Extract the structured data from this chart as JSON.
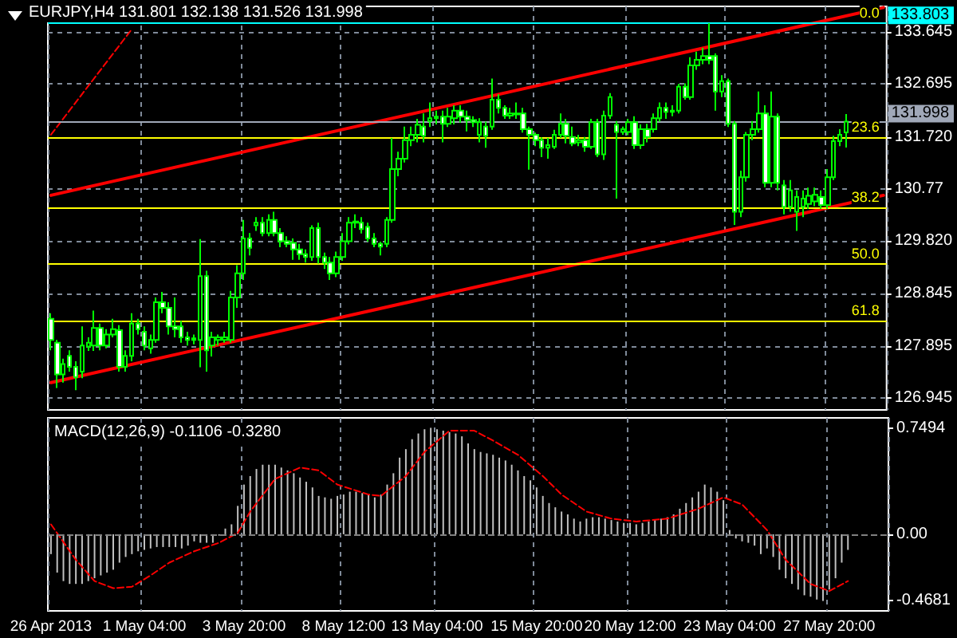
{
  "chart_data": [
    {
      "type": "candlestick",
      "title": "EURJPY,H4 131.801 132.138 131.526 131.998",
      "categories": [
        null,
        null,
        null,
        null,
        null,
        null,
        null,
        null,
        null,
        null,
        null,
        null,
        null,
        null,
        null,
        null,
        null,
        null,
        null,
        null,
        null,
        null,
        null,
        null,
        null,
        null,
        null,
        null,
        null,
        null,
        null,
        null,
        null,
        null,
        null,
        null,
        null,
        null,
        null,
        null,
        null,
        null,
        null,
        null,
        null,
        null,
        null,
        null,
        null,
        null,
        null,
        null,
        null,
        null,
        null,
        null,
        null,
        null,
        null,
        null,
        null,
        null,
        null,
        null,
        null,
        null,
        null,
        null,
        null,
        null,
        null,
        null,
        null,
        null,
        null,
        null,
        null,
        null,
        null,
        null,
        null,
        null,
        null,
        null,
        null,
        null,
        null,
        null,
        null,
        null,
        null,
        null,
        null,
        null,
        null,
        null,
        null,
        null,
        null,
        null,
        null,
        null,
        null,
        null,
        null,
        null,
        null,
        null,
        null,
        null,
        null,
        null,
        null,
        null,
        null,
        null,
        null,
        null,
        null,
        null,
        null,
        null,
        null,
        null,
        null,
        null,
        null,
        null,
        null,
        null,
        null,
        null,
        null,
        null,
        null
      ],
      "series": [
        {
          "color": "#00ff00",
          "ohlc": [
            [
              128.39,
              128.49,
              127.81,
              128.0
            ],
            [
              127.95,
              128.0,
              127.12,
              127.37
            ],
            [
              127.37,
              127.66,
              127.22,
              127.56
            ],
            [
              127.71,
              127.81,
              127.42,
              127.51
            ],
            [
              127.51,
              127.61,
              127.08,
              127.32
            ],
            [
              127.42,
              128.25,
              127.3,
              127.9
            ],
            [
              127.88,
              128.05,
              127.8,
              127.95
            ],
            [
              127.9,
              128.54,
              127.8,
              128.22
            ],
            [
              128.22,
              128.3,
              127.81,
              127.9
            ],
            [
              127.9,
              128.2,
              127.85,
              128.1
            ],
            [
              128.1,
              128.39,
              128.05,
              128.2
            ],
            [
              128.18,
              128.27,
              127.42,
              127.51
            ],
            [
              127.51,
              127.81,
              127.42,
              127.71
            ],
            [
              127.71,
              128.49,
              127.61,
              128.3
            ],
            [
              128.3,
              128.39,
              128.1,
              128.2
            ],
            [
              128.15,
              128.25,
              127.81,
              127.9
            ],
            [
              127.85,
              128.1,
              127.75,
              128.0
            ],
            [
              128.0,
              128.78,
              127.95,
              128.69
            ],
            [
              128.69,
              128.88,
              128.49,
              128.59
            ],
            [
              128.59,
              128.69,
              128.1,
              128.25
            ],
            [
              128.25,
              128.78,
              128.05,
              128.2
            ],
            [
              128.25,
              128.35,
              127.95,
              128.05
            ],
            [
              128.05,
              128.15,
              127.9,
              128.0
            ],
            [
              128.03,
              128.1,
              127.92,
              128.0
            ],
            [
              128.0,
              129.85,
              127.5,
              129.17
            ],
            [
              129.17,
              129.27,
              127.42,
              127.81
            ],
            [
              127.9,
              128.15,
              127.7,
              128.05
            ],
            [
              128.0,
              128.1,
              127.9,
              128.05
            ],
            [
              128.0,
              128.15,
              127.95,
              128.05
            ],
            [
              128.0,
              128.9,
              127.95,
              128.78
            ],
            [
              128.78,
              129.37,
              128.59,
              129.22
            ],
            [
              129.22,
              130.2,
              129.1,
              129.86
            ],
            [
              129.86,
              129.96,
              129.55,
              129.69
            ],
            [
              130.1,
              130.25,
              130.0,
              130.15
            ],
            [
              130.15,
              130.25,
              129.9,
              129.96
            ],
            [
              129.96,
              130.3,
              129.9,
              130.2
            ],
            [
              130.2,
              130.35,
              129.9,
              129.96
            ],
            [
              129.96,
              130.05,
              129.7,
              129.81
            ],
            [
              129.81,
              129.9,
              129.7,
              129.76
            ],
            [
              129.78,
              129.86,
              129.47,
              129.66
            ],
            [
              129.66,
              129.76,
              129.47,
              129.57
            ],
            [
              129.57,
              129.66,
              129.42,
              129.52
            ],
            [
              129.52,
              130.1,
              129.45,
              130.05
            ],
            [
              130.05,
              130.15,
              129.4,
              129.52
            ],
            [
              129.52,
              129.6,
              129.3,
              129.42
            ],
            [
              129.42,
              129.52,
              129.1,
              129.22
            ],
            [
              129.22,
              129.62,
              129.15,
              129.52
            ],
            [
              129.52,
              129.96,
              129.45,
              129.81
            ],
            [
              129.81,
              130.25,
              129.75,
              130.15
            ],
            [
              130.15,
              130.3,
              130.05,
              130.17
            ],
            [
              130.15,
              130.25,
              129.95,
              130.03
            ],
            [
              130.07,
              130.15,
              129.8,
              129.86
            ],
            [
              129.86,
              129.96,
              129.7,
              129.76
            ],
            [
              129.76,
              129.8,
              129.55,
              129.71
            ],
            [
              129.76,
              130.25,
              129.7,
              130.2
            ],
            [
              130.2,
              131.7,
              130.15,
              131.13
            ],
            [
              131.13,
              131.45,
              131.0,
              131.32
            ],
            [
              131.32,
              131.91,
              131.25,
              131.66
            ],
            [
              131.66,
              131.91,
              131.55,
              131.76
            ],
            [
              131.76,
              132.05,
              131.62,
              131.94
            ],
            [
              131.91,
              132.15,
              131.62,
              131.74
            ],
            [
              132.01,
              132.35,
              131.9,
              132.06
            ],
            [
              132.06,
              132.2,
              131.95,
              132.09
            ],
            [
              132.09,
              132.2,
              131.62,
              131.96
            ],
            [
              131.96,
              132.25,
              131.9,
              132.09
            ],
            [
              132.06,
              132.3,
              131.95,
              132.2
            ],
            [
              132.2,
              132.3,
              131.98,
              132.09
            ],
            [
              132.09,
              132.2,
              131.82,
              132.03
            ],
            [
              132.03,
              132.1,
              131.9,
              131.99
            ],
            [
              131.76,
              132.06,
              131.62,
              131.99
            ],
            [
              131.91,
              132.0,
              131.52,
              131.74
            ],
            [
              131.91,
              132.79,
              131.85,
              132.4
            ],
            [
              132.4,
              132.5,
              132.15,
              132.25
            ],
            [
              132.25,
              132.3,
              132.05,
              132.11
            ],
            [
              132.11,
              132.25,
              132.05,
              132.15
            ],
            [
              132.15,
              132.35,
              132.05,
              132.13
            ],
            [
              132.15,
              132.25,
              131.8,
              131.86
            ],
            [
              131.86,
              131.91,
              131.12,
              131.76
            ],
            [
              131.76,
              131.8,
              131.55,
              131.66
            ],
            [
              131.66,
              131.71,
              131.35,
              131.52
            ],
            [
              131.52,
              131.7,
              131.32,
              131.57
            ],
            [
              131.54,
              131.85,
              131.5,
              131.76
            ],
            [
              131.76,
              132.15,
              131.7,
              131.96
            ],
            [
              131.96,
              132.05,
              131.6,
              131.74
            ],
            [
              131.72,
              131.91,
              131.55,
              131.6
            ],
            [
              131.62,
              131.76,
              131.55,
              131.66
            ],
            [
              131.66,
              131.72,
              131.45,
              131.54
            ],
            [
              131.54,
              132.05,
              131.5,
              131.99
            ],
            [
              131.99,
              132.05,
              131.35,
              131.4
            ],
            [
              131.4,
              132.2,
              131.3,
              132.11
            ],
            [
              132.11,
              132.52,
              132.05,
              132.45
            ],
            [
              131.94,
              132.01,
              130.59,
              131.81
            ],
            [
              131.81,
              131.91,
              131.76,
              131.86
            ],
            [
              131.81,
              132.05,
              131.75,
              131.99
            ],
            [
              131.99,
              132.1,
              131.5,
              131.57
            ],
            [
              131.57,
              131.95,
              131.5,
              131.86
            ],
            [
              131.86,
              131.96,
              131.62,
              131.72
            ],
            [
              131.86,
              132.15,
              131.8,
              132.06
            ],
            [
              132.06,
              132.35,
              132.0,
              132.25
            ],
            [
              132.25,
              132.35,
              132.05,
              132.18
            ],
            [
              132.18,
              132.3,
              132.1,
              132.2
            ],
            [
              132.2,
              132.69,
              132.15,
              132.64
            ],
            [
              132.64,
              132.7,
              132.4,
              132.45
            ],
            [
              132.45,
              133.18,
              132.4,
              133.03
            ],
            [
              133.03,
              133.28,
              132.95,
              133.13
            ],
            [
              133.13,
              133.35,
              133.05,
              133.2
            ],
            [
              133.2,
              133.803,
              133.05,
              133.13
            ],
            [
              133.2,
              133.25,
              132.2,
              132.55
            ],
            [
              132.55,
              132.85,
              132.45,
              132.74
            ],
            [
              132.74,
              132.79,
              131.9,
              131.96
            ],
            [
              131.96,
              132.01,
              130.11,
              130.35
            ],
            [
              130.35,
              131.1,
              130.25,
              130.98
            ],
            [
              130.98,
              131.81,
              130.9,
              131.76
            ],
            [
              131.76,
              132.01,
              131.66,
              131.86
            ],
            [
              131.86,
              132.55,
              131.8,
              132.15
            ],
            [
              132.15,
              132.3,
              130.8,
              130.88
            ],
            [
              130.88,
              132.55,
              130.8,
              132.09
            ],
            [
              132.09,
              132.15,
              130.74,
              130.88
            ],
            [
              130.83,
              130.93,
              130.3,
              130.44
            ],
            [
              130.44,
              130.93,
              130.35,
              130.74
            ],
            [
              130.35,
              130.74,
              130.0,
              130.62
            ],
            [
              130.44,
              130.74,
              130.25,
              130.59
            ],
            [
              130.49,
              130.79,
              130.4,
              130.64
            ],
            [
              130.54,
              130.79,
              130.45,
              130.66
            ],
            [
              130.62,
              130.74,
              130.4,
              130.47
            ],
            [
              130.47,
              131.13,
              130.4,
              130.98
            ],
            [
              130.98,
              131.74,
              130.93,
              131.64
            ],
            [
              131.64,
              131.86,
              131.55,
              131.76
            ],
            [
              131.801,
              132.138,
              131.526,
              131.998
            ],
            null,
            null,
            null,
            null,
            null,
            null
          ]
        },
        {
          "type": "line",
          "color": "#ff0000",
          "values": [
            130.65,
            null,
            null,
            null,
            null,
            null,
            null,
            null,
            null,
            null,
            null,
            null,
            null,
            null,
            null,
            null,
            null,
            null,
            null,
            null,
            null,
            null,
            null,
            null,
            null,
            null,
            null,
            null,
            null,
            null,
            null,
            null,
            null,
            null,
            null,
            null,
            null,
            null,
            null,
            null,
            null,
            null,
            null,
            null,
            null,
            null,
            null,
            null,
            null,
            null,
            null,
            null,
            null,
            null,
            null,
            null,
            null,
            null,
            null,
            null,
            null,
            null,
            null,
            null,
            null,
            null,
            null,
            null,
            null,
            null,
            null,
            null,
            null,
            null,
            null,
            null,
            null,
            null,
            null,
            null,
            null,
            null,
            null,
            null,
            null,
            null,
            null,
            null,
            null,
            null,
            null,
            null,
            null,
            null,
            null,
            null,
            null,
            null,
            null,
            null,
            null,
            null,
            null,
            null,
            null,
            null,
            null,
            null,
            null,
            null,
            null,
            null,
            null,
            null,
            null,
            null,
            null,
            null,
            null,
            null,
            null,
            null,
            null,
            null,
            null,
            null,
            null,
            null,
            null,
            null,
            null,
            null,
            null,
            null,
            134.09
          ]
        },
        {
          "type": "line",
          "color": "#ff0000",
          "values": [
            127.22,
            null,
            null,
            null,
            null,
            null,
            null,
            null,
            null,
            null,
            null,
            null,
            null,
            null,
            null,
            null,
            null,
            null,
            null,
            null,
            null,
            null,
            null,
            null,
            null,
            null,
            null,
            null,
            null,
            null,
            null,
            null,
            null,
            null,
            null,
            null,
            null,
            null,
            null,
            null,
            null,
            null,
            null,
            null,
            null,
            null,
            null,
            null,
            null,
            null,
            null,
            null,
            null,
            null,
            null,
            null,
            null,
            null,
            null,
            null,
            null,
            null,
            null,
            null,
            null,
            null,
            null,
            null,
            null,
            null,
            null,
            null,
            null,
            null,
            null,
            null,
            null,
            null,
            null,
            null,
            null,
            null,
            null,
            null,
            null,
            null,
            null,
            null,
            null,
            null,
            null,
            null,
            null,
            null,
            null,
            null,
            null,
            null,
            null,
            null,
            null,
            null,
            null,
            null,
            null,
            null,
            null,
            null,
            null,
            null,
            null,
            null,
            null,
            null,
            null,
            null,
            null,
            null,
            null,
            null,
            null,
            null,
            null,
            null,
            null,
            null,
            null,
            null,
            null,
            null,
            null,
            null,
            null,
            null,
            130.65
          ]
        },
        {
          "type": "line",
          "color": "#ff0000",
          "line_style": "dashed",
          "values": [
            131.76,
            null,
            null,
            null,
            null,
            null,
            null,
            null,
            null,
            null,
            null,
            null,
            null,
            133.69,
            null,
            null,
            null,
            null,
            null,
            null,
            null,
            null,
            null,
            null,
            null,
            null,
            null,
            null,
            null,
            null,
            null,
            null,
            null,
            null,
            null,
            null,
            null,
            null,
            null,
            null,
            null,
            null,
            null,
            null,
            null,
            null,
            null,
            null,
            null,
            null,
            null,
            null,
            null,
            null,
            null,
            null,
            null,
            null,
            null,
            null,
            null,
            null,
            null,
            null,
            null,
            null,
            null,
            null,
            null,
            null,
            null,
            null,
            null,
            null,
            null,
            null,
            null,
            null,
            null,
            null,
            null,
            null,
            null,
            null,
            null,
            null,
            null,
            null,
            null,
            null,
            null,
            null,
            null,
            null,
            null,
            null,
            null,
            null,
            null,
            null,
            null,
            null,
            null,
            null,
            null,
            null,
            null,
            null,
            null,
            null,
            null,
            null,
            null,
            null,
            null,
            null,
            null,
            null,
            null,
            null,
            null,
            null,
            null,
            null,
            null,
            null,
            null,
            null,
            null,
            null,
            null,
            null,
            null,
            null,
            null
          ]
        }
      ],
      "marker": "none",
      "ylim": [
        126.72,
        134.11
      ],
      "yticks": [
        126.945,
        127.895,
        128.845,
        {
          "value": 129.82,
          "label": "129.820"
        },
        130.77,
        {
          "value": 131.72,
          "label": "131.720"
        },
        132.695,
        133.645
      ],
      "tick_labels": "y",
      "grid": true,
      "ref_lines": [
        {
          "axis": "y",
          "value": 133.803,
          "color": "#ffff00"
        },
        {
          "axis": "y",
          "value": 131.72,
          "color": "#ffff00"
        },
        {
          "axis": "y",
          "value": 130.43,
          "color": "#ffff00"
        },
        {
          "axis": "y",
          "value": 129.39,
          "color": "#ffff00"
        },
        {
          "axis": "y",
          "value": 128.35,
          "color": "#ffff00"
        },
        {
          "axis": "y",
          "value": 133.803,
          "label": "133.803",
          "color": "#00ffff"
        },
        {
          "axis": "y",
          "value": 131.998,
          "label": "131.998",
          "color": "#a0a8b8"
        }
      ],
      "annotations": [
        {
          "text": "0.0",
          "y": 133.803
        },
        {
          "text": "23.6",
          "y": 131.72
        },
        {
          "text": "38.2",
          "y": 130.43
        },
        {
          "text": "50.0",
          "y": 129.39
        },
        {
          "text": "61.8",
          "y": 128.35
        }
      ]
    },
    {
      "type": "bar",
      "title": "MACD(12,26,9) -0.1106 -0.3280",
      "categories": [
        "26 Apr 2013",
        null,
        null,
        null,
        null,
        null,
        null,
        null,
        null,
        null,
        null,
        null,
        null,
        null,
        null,
        "1 May 04:00",
        null,
        null,
        null,
        null,
        null,
        null,
        null,
        null,
        null,
        null,
        null,
        null,
        null,
        null,
        null,
        "3 May 20:00",
        null,
        null,
        null,
        null,
        null,
        null,
        null,
        null,
        null,
        null,
        null,
        null,
        null,
        null,
        null,
        "8 May 12:00",
        null,
        null,
        null,
        null,
        null,
        null,
        null,
        null,
        null,
        null,
        null,
        null,
        null,
        null,
        "13 May 04:00",
        null,
        null,
        null,
        null,
        null,
        null,
        null,
        null,
        null,
        null,
        null,
        null,
        null,
        null,
        null,
        "15 May 20:00",
        null,
        null,
        null,
        null,
        null,
        null,
        null,
        null,
        null,
        null,
        null,
        null,
        null,
        null,
        "20 May 12:00",
        null,
        null,
        null,
        null,
        null,
        null,
        null,
        null,
        null,
        null,
        null,
        null,
        null,
        null,
        null,
        "23 May 04:00",
        null,
        null,
        null,
        null,
        null,
        null,
        null,
        null,
        null,
        null,
        null,
        null,
        null,
        null,
        null,
        "27 May 20:00",
        null,
        null,
        null,
        null,
        null,
        null,
        null,
        null,
        null
      ],
      "series": [
        {
          "color": "#c0c0c0",
          "values": [
            -0.14,
            -0.27,
            -0.33,
            -0.35,
            -0.35,
            -0.35,
            -0.33,
            -0.31,
            -0.29,
            -0.27,
            -0.25,
            -0.2,
            -0.16,
            -0.14,
            -0.12,
            -0.11,
            -0.1,
            -0.09,
            -0.09,
            -0.09,
            -0.09,
            -0.1,
            -0.08,
            -0.05,
            -0.06,
            -0.06,
            -0.06,
            -0.01,
            0.04,
            0.07,
            0.2,
            0.35,
            0.41,
            0.46,
            0.49,
            0.49,
            0.49,
            0.47,
            0.45,
            0.43,
            0.4,
            0.37,
            0.33,
            0.27,
            0.26,
            0.25,
            0.27,
            0.28,
            0.3,
            0.3,
            0.29,
            0.28,
            0.26,
            0.28,
            0.35,
            0.43,
            0.54,
            0.6,
            0.67,
            0.71,
            0.74,
            0.75,
            0.74,
            0.73,
            0.72,
            0.71,
            0.69,
            0.64,
            0.6,
            0.58,
            0.57,
            0.56,
            0.54,
            0.52,
            0.49,
            0.45,
            0.41,
            0.38,
            0.33,
            0.27,
            0.22,
            0.19,
            0.16,
            0.14,
            0.11,
            0.09,
            0.11,
            0.12,
            0.12,
            0.11,
            0.1,
            0.09,
            0.08,
            0.08,
            0.07,
            0.08,
            0.09,
            0.1,
            0.11,
            0.12,
            0.14,
            0.18,
            0.22,
            0.26,
            0.3,
            0.35,
            0.33,
            0.3,
            0.24,
            0.03,
            -0.03,
            -0.05,
            -0.06,
            -0.08,
            -0.14,
            -0.1,
            -0.16,
            -0.25,
            -0.31,
            -0.35,
            -0.39,
            -0.43,
            -0.44,
            -0.46,
            -0.47,
            -0.39,
            -0.31,
            -0.2,
            -0.11,
            null,
            null,
            null,
            null,
            null,
            null
          ]
        },
        {
          "type": "line",
          "color": "#ff0000",
          "line_style": "dashed",
          "values": [
            0.07,
            null,
            null,
            null,
            -0.18,
            null,
            null,
            -0.33,
            null,
            null,
            -0.38,
            null,
            null,
            -0.37,
            null,
            null,
            -0.29,
            null,
            null,
            -0.2,
            null,
            null,
            null,
            -0.12,
            null,
            null,
            null,
            -0.06,
            null,
            null,
            0.01,
            null,
            0.16,
            null,
            null,
            null,
            0.39,
            null,
            null,
            null,
            0.47,
            null,
            null,
            0.45,
            null,
            null,
            0.35,
            null,
            null,
            null,
            null,
            0.28,
            null,
            0.27,
            null,
            null,
            null,
            0.41,
            null,
            null,
            0.58,
            null,
            null,
            null,
            0.73,
            null,
            null,
            null,
            0.73,
            null,
            null,
            0.66,
            null,
            null,
            null,
            0.56,
            null,
            null,
            null,
            0.41,
            null,
            null,
            0.28,
            null,
            null,
            null,
            0.16,
            null,
            null,
            null,
            0.11,
            null,
            null,
            null,
            0.09,
            null,
            null,
            null,
            null,
            0.11,
            null,
            null,
            null,
            null,
            0.18,
            null,
            null,
            null,
            0.26,
            null,
            null,
            0.21,
            null,
            null,
            null,
            0.03,
            null,
            null,
            -0.18,
            null,
            null,
            null,
            -0.35,
            null,
            null,
            -0.4,
            null,
            null,
            -0.33,
            null,
            null,
            null,
            null,
            null,
            null
          ]
        }
      ],
      "marker": "none",
      "ylim": [
        -0.54,
        0.82
      ],
      "yticks": [
        -0.4681,
        {
          "value": 0,
          "label": "0.00"
        },
        0.7494
      ],
      "grid": "x",
      "ref_lines": [
        {
          "axis": "y",
          "value": 0,
          "color": "#808080",
          "line_style": "dashed"
        }
      ]
    }
  ]
}
